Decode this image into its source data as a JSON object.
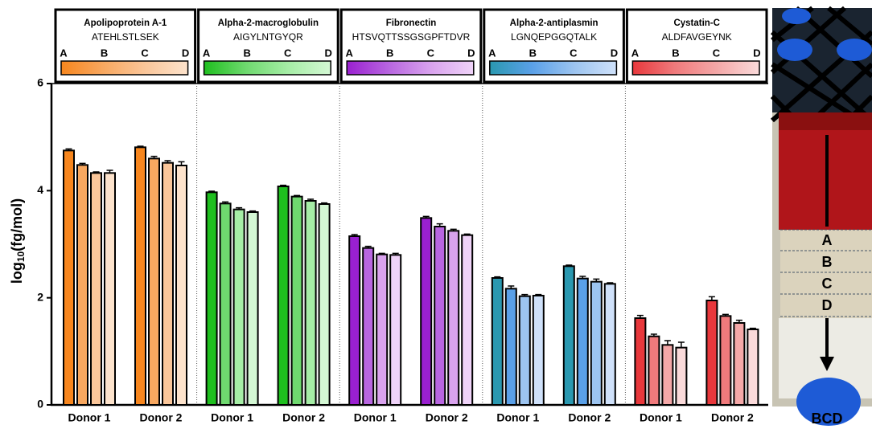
{
  "chart_data": {
    "type": "bar",
    "ylabel_parts": [
      "log",
      "10",
      "(fg/mol)"
    ],
    "ylim": [
      0,
      6
    ],
    "yticks": [
      0,
      2,
      4,
      6
    ],
    "panels": [
      {
        "protein": "Apolipoprotein A-1",
        "peptide": "ATEHLSTLSEK",
        "categories": [
          "Donor 1",
          "Donor 2"
        ],
        "series": [
          {
            "name": "A",
            "color": "#f7861e",
            "values": [
              4.75,
              4.81
            ],
            "errors": [
              0.03,
              0.02
            ]
          },
          {
            "name": "B",
            "color": "#f8a860",
            "values": [
              4.48,
              4.6
            ],
            "errors": [
              0.03,
              0.04
            ]
          },
          {
            "name": "C",
            "color": "#fac69a",
            "values": [
              4.33,
              4.52
            ],
            "errors": [
              0.02,
              0.04
            ]
          },
          {
            "name": "D",
            "color": "#fde3cc",
            "values": [
              4.33,
              4.47
            ],
            "errors": [
              0.05,
              0.07
            ]
          }
        ]
      },
      {
        "protein": "Alpha-2-macroglobulin",
        "peptide": "AIGYLNTGYQR",
        "categories": [
          "Donor 1",
          "Donor 2"
        ],
        "series": [
          {
            "name": "A",
            "color": "#1fbf1f",
            "values": [
              3.97,
              4.08
            ],
            "errors": [
              0.02,
              0.02
            ]
          },
          {
            "name": "B",
            "color": "#6fd96f",
            "values": [
              3.76,
              3.89
            ],
            "errors": [
              0.03,
              0.02
            ]
          },
          {
            "name": "C",
            "color": "#a6eda6",
            "values": [
              3.65,
              3.81
            ],
            "errors": [
              0.03,
              0.03
            ]
          },
          {
            "name": "D",
            "color": "#d4f8d4",
            "values": [
              3.6,
              3.75
            ],
            "errors": [
              0.02,
              0.02
            ]
          }
        ]
      },
      {
        "protein": "Fibronectin",
        "peptide": "HTSVQTTSSGSGPFTDVR",
        "categories": [
          "Donor 1",
          "Donor 2"
        ],
        "series": [
          {
            "name": "A",
            "color": "#9a20d0",
            "values": [
              3.15,
              3.49
            ],
            "errors": [
              0.03,
              0.03
            ]
          },
          {
            "name": "B",
            "color": "#b866e0",
            "values": [
              2.93,
              3.33
            ],
            "errors": [
              0.03,
              0.05
            ]
          },
          {
            "name": "C",
            "color": "#d9a3ee",
            "values": [
              2.81,
              3.25
            ],
            "errors": [
              0.02,
              0.03
            ]
          },
          {
            "name": "D",
            "color": "#efd3f8",
            "values": [
              2.8,
              3.17
            ],
            "errors": [
              0.03,
              0.02
            ]
          }
        ]
      },
      {
        "protein": "Alpha-2-antiplasmin",
        "peptide": "LGNQEPGGQTALK",
        "categories": [
          "Donor 1",
          "Donor 2"
        ],
        "series": [
          {
            "name": "A",
            "color": "#2a98b0",
            "values": [
              2.37,
              2.59
            ],
            "errors": [
              0.02,
              0.02
            ]
          },
          {
            "name": "B",
            "color": "#5aa0e8",
            "values": [
              2.17,
              2.36
            ],
            "errors": [
              0.05,
              0.04
            ]
          },
          {
            "name": "C",
            "color": "#9cc4f0",
            "values": [
              2.03,
              2.3
            ],
            "errors": [
              0.03,
              0.05
            ]
          },
          {
            "name": "D",
            "color": "#cfe1fa",
            "values": [
              2.04,
              2.26
            ],
            "errors": [
              0.02,
              0.02
            ]
          }
        ]
      },
      {
        "protein": "Cystatin-C",
        "peptide": "ALDFAVGEYNK",
        "categories": [
          "Donor 1",
          "Donor 2"
        ],
        "series": [
          {
            "name": "A",
            "color": "#e8383c",
            "values": [
              1.62,
              1.95
            ],
            "errors": [
              0.05,
              0.07
            ]
          },
          {
            "name": "B",
            "color": "#f07a7c",
            "values": [
              1.28,
              1.66
            ],
            "errors": [
              0.04,
              0.03
            ]
          },
          {
            "name": "C",
            "color": "#f4a8a8",
            "values": [
              1.12,
              1.53
            ],
            "errors": [
              0.08,
              0.05
            ]
          },
          {
            "name": "D",
            "color": "#fadada",
            "values": [
              1.07,
              1.41
            ],
            "errors": [
              0.1,
              0.02
            ]
          }
        ]
      }
    ]
  },
  "image_panel": {
    "title": "BCD",
    "bands": [
      "A",
      "B",
      "C",
      "D"
    ]
  }
}
